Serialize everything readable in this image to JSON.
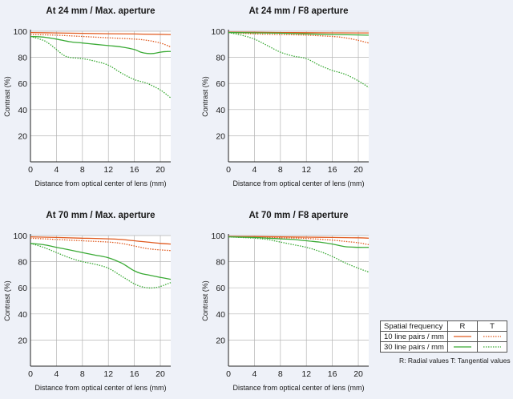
{
  "colors": {
    "background": "#eef1f8",
    "plot_background": "#ffffff",
    "grid": "#b5b5b5",
    "axis": "#222222",
    "line_10": "#e05a1f",
    "line_30": "#3aaa35"
  },
  "legend": {
    "header": "Spatial frequency",
    "col_r": "R",
    "col_t": "T",
    "row1": "10 line pairs / mm",
    "row2": "30 line pairs / mm",
    "note": "R: Radial values  T: Tangential values"
  },
  "chart_data": [
    {
      "type": "line",
      "title": "At 24 mm / Max. aperture",
      "xlabel": "Distance from optical center of lens (mm)",
      "ylabel": "Contrast (%)",
      "xlim": [
        0,
        21.6
      ],
      "ylim": [
        0,
        100
      ],
      "xticks": [
        "0",
        "4",
        "8",
        "12",
        "16",
        "20"
      ],
      "yticks": [
        "20",
        "40",
        "60",
        "80",
        "100"
      ],
      "grid": true,
      "series": [
        {
          "name": "10 line pairs / mm R",
          "style": "solid",
          "color": "#e05a1f",
          "x": [
            0,
            4,
            8,
            12,
            16,
            20,
            21.6
          ],
          "y": [
            99,
            98.7,
            98.4,
            98.1,
            97.9,
            97.6,
            97.5
          ]
        },
        {
          "name": "10 line pairs / mm T",
          "style": "dotted",
          "color": "#e05a1f",
          "x": [
            0,
            4,
            8,
            12,
            16,
            18,
            20,
            21.6
          ],
          "y": [
            97.5,
            97,
            96,
            95,
            94,
            93,
            91,
            88
          ]
        },
        {
          "name": "30 line pairs / mm R",
          "style": "solid",
          "color": "#3aaa35",
          "x": [
            0,
            2,
            4,
            6,
            8,
            10,
            12,
            14,
            16,
            17,
            18,
            19,
            20,
            21,
            21.6
          ],
          "y": [
            96,
            95.5,
            94,
            92,
            91,
            90,
            89,
            88,
            86,
            84,
            83,
            83,
            84,
            84.5,
            84.5
          ]
        },
        {
          "name": "30 line pairs / mm T",
          "style": "dotted",
          "color": "#3aaa35",
          "x": [
            0,
            2,
            3,
            4,
            5,
            6,
            8,
            10,
            12,
            14,
            16,
            18,
            20,
            21.6
          ],
          "y": [
            96,
            93,
            90,
            86,
            82,
            80,
            79,
            77,
            74,
            68,
            63,
            60,
            55,
            49
          ]
        }
      ]
    },
    {
      "type": "line",
      "title": "At 24 mm / F8 aperture",
      "xlabel": "Distance from optical center of lens (mm)",
      "ylabel": "Contrast (%)",
      "xlim": [
        0,
        21.6
      ],
      "ylim": [
        0,
        100
      ],
      "xticks": [
        "0",
        "4",
        "8",
        "12",
        "16",
        "20"
      ],
      "yticks": [
        "20",
        "40",
        "60",
        "80",
        "100"
      ],
      "grid": true,
      "series": [
        {
          "name": "10 line pairs / mm R",
          "style": "solid",
          "color": "#e05a1f",
          "x": [
            0,
            4,
            8,
            12,
            16,
            20,
            21.6
          ],
          "y": [
            99.3,
            99.2,
            99,
            98.9,
            98.8,
            98.7,
            98.7
          ]
        },
        {
          "name": "10 line pairs / mm T",
          "style": "dotted",
          "color": "#e05a1f",
          "x": [
            0,
            4,
            8,
            12,
            16,
            18,
            20,
            21.6
          ],
          "y": [
            99,
            98,
            97.5,
            97,
            96,
            95,
            93,
            91
          ]
        },
        {
          "name": "30 line pairs / mm R",
          "style": "solid",
          "color": "#3aaa35",
          "x": [
            0,
            4,
            8,
            12,
            16,
            20,
            21.6
          ],
          "y": [
            99,
            98.8,
            98.5,
            98,
            97.5,
            97.2,
            97
          ]
        },
        {
          "name": "30 line pairs / mm T",
          "style": "dotted",
          "color": "#3aaa35",
          "x": [
            0,
            2,
            4,
            6,
            8,
            10,
            12,
            14,
            16,
            18,
            20,
            21.6
          ],
          "y": [
            99,
            97,
            94,
            89,
            84,
            81,
            79,
            74,
            70,
            67,
            62,
            57
          ]
        }
      ]
    },
    {
      "type": "line",
      "title": "At 70 mm / Max. aperture",
      "xlabel": "Distance from optical center of lens (mm)",
      "ylabel": "Contrast (%)",
      "xlim": [
        0,
        21.6
      ],
      "ylim": [
        0,
        100
      ],
      "xticks": [
        "0",
        "4",
        "8",
        "12",
        "16",
        "20"
      ],
      "yticks": [
        "20",
        "40",
        "60",
        "80",
        "100"
      ],
      "grid": true,
      "series": [
        {
          "name": "10 line pairs / mm R",
          "style": "solid",
          "color": "#e05a1f",
          "x": [
            0,
            4,
            8,
            12,
            14,
            16,
            18,
            20,
            21.6
          ],
          "y": [
            99,
            98.5,
            98,
            97.5,
            97,
            96,
            95,
            94,
            93.5
          ]
        },
        {
          "name": "10 line pairs / mm T",
          "style": "dotted",
          "color": "#e05a1f",
          "x": [
            0,
            4,
            8,
            12,
            14,
            16,
            18,
            20,
            21.6
          ],
          "y": [
            98,
            97,
            96,
            95,
            94,
            92,
            90,
            89,
            88.5
          ]
        },
        {
          "name": "30 line pairs / mm R",
          "style": "solid",
          "color": "#3aaa35",
          "x": [
            0,
            2,
            4,
            6,
            8,
            10,
            12,
            14,
            15,
            16,
            17,
            18,
            20,
            21.6
          ],
          "y": [
            94,
            93,
            91,
            89,
            87,
            85,
            83,
            79,
            76,
            73,
            71,
            70,
            68,
            66.5
          ]
        },
        {
          "name": "30 line pairs / mm T",
          "style": "dotted",
          "color": "#3aaa35",
          "x": [
            0,
            2,
            4,
            6,
            8,
            10,
            12,
            14,
            15,
            16,
            17,
            18,
            19,
            20,
            21.6
          ],
          "y": [
            94,
            91,
            87,
            83,
            80,
            78,
            75,
            69,
            66,
            63,
            61,
            60,
            60,
            61,
            64
          ]
        }
      ]
    },
    {
      "type": "line",
      "title": "At 70 mm / F8 aperture",
      "xlabel": "Distance from optical center of lens (mm)",
      "ylabel": "Contrast (%)",
      "xlim": [
        0,
        21.6
      ],
      "ylim": [
        0,
        100
      ],
      "xticks": [
        "0",
        "4",
        "8",
        "12",
        "16",
        "20"
      ],
      "yticks": [
        "20",
        "40",
        "60",
        "80",
        "100"
      ],
      "grid": true,
      "series": [
        {
          "name": "10 line pairs / mm R",
          "style": "solid",
          "color": "#e05a1f",
          "x": [
            0,
            4,
            8,
            12,
            16,
            20,
            21.6
          ],
          "y": [
            99.3,
            99.2,
            99,
            98.8,
            98.5,
            98.3,
            98
          ]
        },
        {
          "name": "10 line pairs / mm T",
          "style": "dotted",
          "color": "#e05a1f",
          "x": [
            0,
            4,
            8,
            12,
            16,
            18,
            20,
            21.6
          ],
          "y": [
            99,
            98.7,
            98.3,
            97.8,
            96.5,
            95.5,
            94.5,
            93
          ]
        },
        {
          "name": "30 line pairs / mm R",
          "style": "solid",
          "color": "#3aaa35",
          "x": [
            0,
            4,
            6,
            8,
            10,
            12,
            14,
            16,
            18,
            20,
            21.6
          ],
          "y": [
            99,
            98.5,
            98,
            97.5,
            97,
            96,
            95,
            93.5,
            91.5,
            91,
            91
          ]
        },
        {
          "name": "30 line pairs / mm T",
          "style": "dotted",
          "color": "#3aaa35",
          "x": [
            0,
            2,
            4,
            6,
            8,
            10,
            12,
            14,
            16,
            18,
            20,
            21.6
          ],
          "y": [
            99,
            98.5,
            98,
            97,
            95,
            93,
            91,
            88,
            84,
            79,
            75,
            72
          ]
        }
      ]
    }
  ]
}
